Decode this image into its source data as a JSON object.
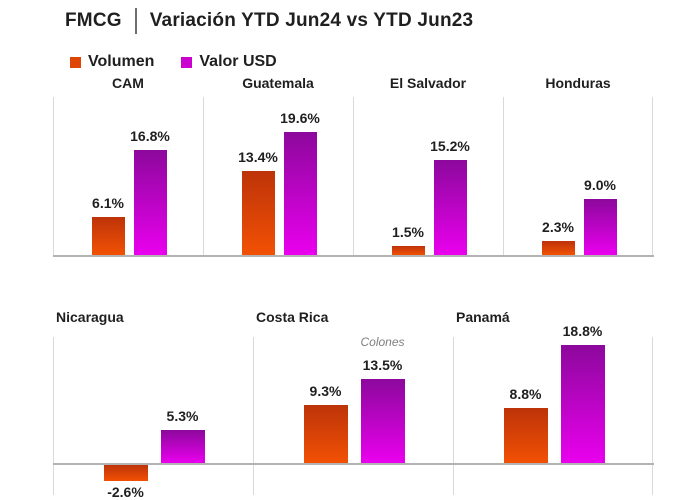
{
  "title": {
    "brand": "FMCG",
    "separator": "|",
    "heading": "Variación YTD Jun24 vs YTD Jun23"
  },
  "legend": {
    "items": [
      {
        "label": "Volumen"
      },
      {
        "label": "Valor USD"
      }
    ]
  },
  "colors": {
    "text": "#1f1f1f",
    "volumen_swatch": "#dd4605",
    "valor_usd_swatch": "#cb02cf",
    "volumen_gradient_top": "#bd3309",
    "volumen_gradient_bottom": "#f25104",
    "valor_gradient_top": "#8c089c",
    "valor_gradient_bottom": "#ea00ee",
    "panel_border": "#d9d9d9",
    "baseline": "#b3b3b3",
    "note_text": "#7f7f7f"
  },
  "chart_data": {
    "type": "bar",
    "title": "FMCG | Variación YTD Jun24 vs YTD Jun23",
    "unit": "percent",
    "series": [
      "Volumen",
      "Valor USD"
    ],
    "legend_position": "top-left",
    "grid": false,
    "rows": [
      {
        "panels": [
          {
            "country": "CAM",
            "values": [
              6.1,
              16.8
            ],
            "labels": [
              "6.1%",
              "16.8%"
            ]
          },
          {
            "country": "Guatemala",
            "values": [
              13.4,
              19.6
            ],
            "labels": [
              "13.4%",
              "19.6%"
            ]
          },
          {
            "country": "El Salvador",
            "values": [
              1.5,
              15.2
            ],
            "labels": [
              "1.5%",
              "15.2%"
            ]
          },
          {
            "country": "Honduras",
            "values": [
              2.3,
              9.0
            ],
            "labels": [
              "2.3%",
              "9.0%"
            ]
          }
        ]
      },
      {
        "panels": [
          {
            "country": "Nicaragua",
            "values": [
              -2.6,
              5.3
            ],
            "labels": [
              "-2.6%",
              "5.3%"
            ]
          },
          {
            "country": "Costa Rica",
            "values": [
              9.3,
              13.5
            ],
            "labels": [
              "9.3%",
              "13.5%"
            ],
            "note": "Colones"
          },
          {
            "country": "Panamá",
            "values": [
              8.8,
              18.8
            ],
            "labels": [
              "8.8%",
              "18.8%"
            ]
          }
        ]
      }
    ]
  }
}
